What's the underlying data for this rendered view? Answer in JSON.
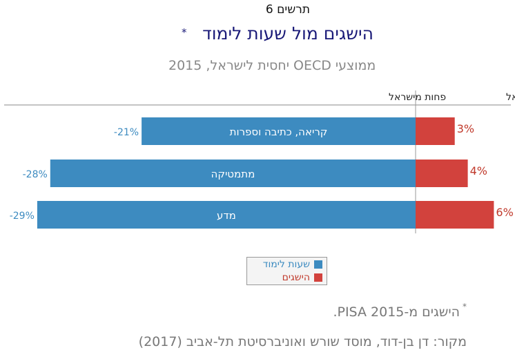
{
  "figure_label": "תרשים 6",
  "title": "הישגים מול שעות לימוד",
  "title_marker": "*",
  "subtitle": "ממוצעי OECD יחסית לישראל, 2015",
  "footnote_marker": "*",
  "footnote": "הישגים מ-2015 PISA.",
  "source": "מקור: דן בן-דוד, מוסד שורש ואוניברסיטת תל-אביב (2017)",
  "colors": {
    "hours": "#3d8bc0",
    "achievement": "#d2423d",
    "label_hours": "#3d8bc0",
    "label_achievement": "#c0392b"
  },
  "chart_data": {
    "type": "bar",
    "orientation": "horizontal",
    "header_left": "פחות מישראל",
    "header_right": "יותר מישראל",
    "categories": [
      "קריאה, כתיבה וספרות",
      "מתמטיקה",
      "מדע"
    ],
    "series": [
      {
        "name": "שעות לימוד",
        "values": [
          -21,
          -28,
          -29
        ],
        "labels": [
          "-21%",
          "-28%",
          "-29%"
        ]
      },
      {
        "name": "הישגים",
        "values": [
          3,
          4,
          6
        ],
        "labels": [
          "3%",
          "4%",
          "6%"
        ]
      }
    ],
    "unit": "%",
    "legend_position": "bottom"
  }
}
